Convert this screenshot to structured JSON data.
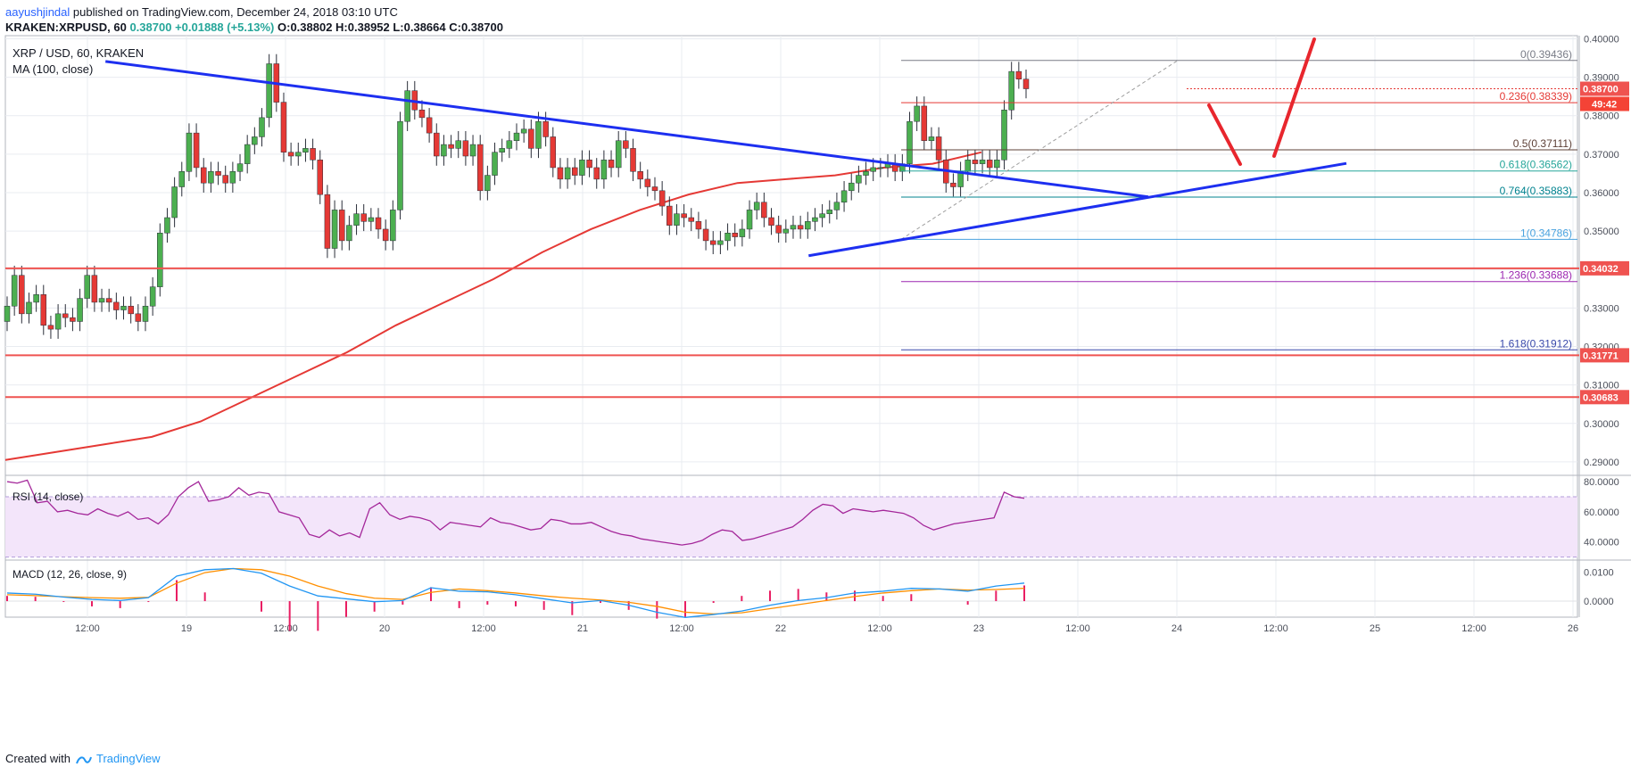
{
  "header": {
    "author": "aayushjindal",
    "published": "published on TradingView.com, December 24, 2018 03:10 UTC",
    "symbol": "KRAKEN:XRPUSD, 60",
    "ohlc": "O:0.38802 H:0.38952 L:0.38664 C:0.38700",
    "last": "0.38700",
    "change": "+0.01888 (+5.13%)"
  },
  "legend": {
    "title": "XRP / USD, 60, KRAKEN",
    "ma": "MA (100, close)",
    "rsi": "RSI (14, close)",
    "macd": "MACD (12, 26, close, 9)"
  },
  "footer": {
    "created_with": "Created with",
    "brand": "TradingView"
  },
  "colors": {
    "up": "#26a69a",
    "down": "#ef5350",
    "candle_up": "#4caf50",
    "candle_down": "#e53935",
    "ma": "#e53935",
    "trend": "#1d2ff0",
    "arrow": "#e8262d",
    "rsi": "#a4279a",
    "rsi_band": "#f3e5fa",
    "macd": "#2196f3",
    "signal": "#ff8f00",
    "hist": "#e91e63",
    "grid": "#e9ecf1"
  },
  "chart_data": {
    "type": "candlestick",
    "time_axis": [
      "12:00",
      "19",
      "12:00",
      "20",
      "12:00",
      "21",
      "12:00",
      "22",
      "12:00",
      "23",
      "12:00",
      "24",
      "12:00",
      "25",
      "12:00",
      "26"
    ],
    "price_axis": [
      "0.40000",
      "0.39000",
      "0.38000",
      "0.37000",
      "0.36000",
      "0.35000",
      "0.34000",
      "0.33000",
      "0.32000",
      "0.31000",
      "0.30000",
      "0.29000"
    ],
    "price_range": [
      0.2865,
      0.4008
    ],
    "rsi_axis": [
      "80.0000",
      "60.0000",
      "40.0000"
    ],
    "rsi_range": [
      28,
      83
    ],
    "rsi_levels": [
      70,
      30
    ],
    "macd_axis": [
      "0.0100",
      "0.0000"
    ],
    "macd_range": [
      -0.0055,
      0.0135
    ],
    "current_price": {
      "value": 0.387,
      "label": "0.38700",
      "countdown": "49:42"
    },
    "horizontal_levels": [
      {
        "value": 0.34032,
        "label": "0.34032"
      },
      {
        "value": 0.31771,
        "label": "0.31771"
      },
      {
        "value": 0.30683,
        "label": "0.30683"
      }
    ],
    "fibonacci": [
      {
        "ratio": "0",
        "value": 0.39436,
        "label": "0(0.39436)",
        "color": "#787b86"
      },
      {
        "ratio": "0.236",
        "value": 0.38339,
        "label": "0.236(0.38339)",
        "color": "#e53935"
      },
      {
        "ratio": "0.5",
        "value": 0.37111,
        "label": "0.5(0.37111)",
        "color": "#5d4037"
      },
      {
        "ratio": "0.618",
        "value": 0.36562,
        "label": "0.618(0.36562)",
        "color": "#26a69a"
      },
      {
        "ratio": "0.764",
        "value": 0.35883,
        "label": "0.764(0.35883)",
        "color": "#00838f"
      },
      {
        "ratio": "1",
        "value": 0.34786,
        "label": "1(0.34786)",
        "color": "#4aa3df"
      },
      {
        "ratio": "1.236",
        "value": 0.33688,
        "label": "1.236(0.33688)",
        "color": "#9c27b0"
      },
      {
        "ratio": "1.618",
        "value": 0.31912,
        "label": "1.618(0.31912)",
        "color": "#3949ab"
      }
    ],
    "close_series": [
      0.3305,
      0.3385,
      0.3285,
      0.3315,
      0.3335,
      0.3255,
      0.3245,
      0.3285,
      0.3275,
      0.3265,
      0.3325,
      0.3385,
      0.3315,
      0.3325,
      0.3315,
      0.3295,
      0.3305,
      0.3285,
      0.3265,
      0.3305,
      0.3355,
      0.3495,
      0.3535,
      0.3615,
      0.3655,
      0.3755,
      0.3665,
      0.3625,
      0.3655,
      0.3645,
      0.3625,
      0.3655,
      0.3675,
      0.3725,
      0.3745,
      0.3795,
      0.3935,
      0.3835,
      0.3705,
      0.3695,
      0.3705,
      0.3715,
      0.3685,
      0.3595,
      0.3455,
      0.3555,
      0.3475,
      0.3515,
      0.3545,
      0.3525,
      0.3535,
      0.3505,
      0.3475,
      0.3555,
      0.3785,
      0.3865,
      0.3815,
      0.3795,
      0.3755,
      0.3695,
      0.3725,
      0.3715,
      0.3735,
      0.3695,
      0.3725,
      0.3605,
      0.3645,
      0.3705,
      0.3715,
      0.3735,
      0.3755,
      0.3765,
      0.3715,
      0.3785,
      0.3745,
      0.3665,
      0.3635,
      0.3665,
      0.3645,
      0.3685,
      0.3665,
      0.3635,
      0.3685,
      0.3665,
      0.3735,
      0.3715,
      0.3655,
      0.3635,
      0.3615,
      0.3605,
      0.3565,
      0.3515,
      0.3545,
      0.3535,
      0.3525,
      0.3505,
      0.3475,
      0.3465,
      0.3475,
      0.3495,
      0.3485,
      0.3505,
      0.3555,
      0.3575,
      0.3535,
      0.3515,
      0.3495,
      0.3505,
      0.3515,
      0.3505,
      0.3525,
      0.3535,
      0.3545,
      0.3555,
      0.3575,
      0.3605,
      0.3625,
      0.3645,
      0.3655,
      0.3665,
      0.3665,
      0.3675,
      0.3655,
      0.3675,
      0.3785,
      0.3825,
      0.3735,
      0.3745,
      0.3685,
      0.3625,
      0.3615,
      0.3655,
      0.3685,
      0.3675,
      0.3685,
      0.3665,
      0.3685,
      0.3815,
      0.3915,
      0.3895,
      0.387
    ],
    "ma_series": [
      0.2905,
      0.2925,
      0.2945,
      0.2965,
      0.3005,
      0.3065,
      0.3125,
      0.3185,
      0.3255,
      0.3315,
      0.3375,
      0.3445,
      0.3505,
      0.3555,
      0.3595,
      0.3625,
      0.3635,
      0.3645,
      0.3665,
      0.3675,
      0.3705
    ],
    "trendlines": [
      {
        "name": "falling",
        "from": [
          0.2,
          0.3941
        ],
        "to": [
          11.0,
          0.3589
        ]
      },
      {
        "name": "rising",
        "from": [
          7.3,
          0.3436
        ],
        "to": [
          13.0,
          0.3676
        ]
      }
    ],
    "rsi_series": [
      80,
      79,
      81,
      66,
      67,
      60,
      61,
      59,
      58,
      62,
      59,
      57,
      60,
      55,
      56,
      52,
      58,
      70,
      76,
      80,
      67,
      68,
      70,
      76,
      71,
      73,
      72,
      60,
      58,
      56,
      45,
      43,
      48,
      44,
      46,
      43,
      62,
      66,
      58,
      55,
      57,
      56,
      54,
      48,
      53,
      52,
      51,
      50,
      56,
      53,
      52,
      50,
      48,
      49,
      55,
      54,
      52,
      52,
      53,
      50,
      47,
      45,
      44,
      42,
      41,
      40,
      39,
      38,
      39,
      41,
      45,
      48,
      47,
      41,
      42,
      44,
      46,
      48,
      50,
      55,
      61,
      65,
      64,
      59,
      62,
      61,
      60,
      61,
      60,
      59,
      56,
      51,
      48,
      50,
      52,
      53,
      54,
      55,
      56,
      73,
      70,
      69
    ],
    "macd_series": [
      0.0028,
      0.0024,
      0.0014,
      0.0006,
      0.0002,
      0.0012,
      0.0086,
      0.0108,
      0.0112,
      0.0096,
      0.0052,
      0.0018,
      0.0008,
      -0.0002,
      0.0002,
      0.0046,
      0.0034,
      0.0032,
      0.0022,
      0.0008,
      -0.0006,
      0.0002,
      -0.0014,
      -0.0038,
      -0.0056,
      -0.0046,
      -0.0034,
      -0.0014,
      0.0002,
      0.0012,
      0.0028,
      0.0034,
      0.0044,
      0.0042,
      0.0034,
      0.0052,
      0.0062
    ],
    "signal_series": [
      0.0022,
      0.0019,
      0.0015,
      0.0012,
      0.001,
      0.0013,
      0.0062,
      0.0098,
      0.0112,
      0.0108,
      0.0086,
      0.0052,
      0.0026,
      0.001,
      0.0006,
      0.003,
      0.0042,
      0.0036,
      0.0028,
      0.0018,
      0.001,
      0.0004,
      -0.0004,
      -0.0018,
      -0.0038,
      -0.0044,
      -0.004,
      -0.0026,
      -0.0012,
      0.0002,
      0.0016,
      0.0028,
      0.0036,
      0.0042,
      0.0038,
      0.004,
      0.0044
    ]
  }
}
